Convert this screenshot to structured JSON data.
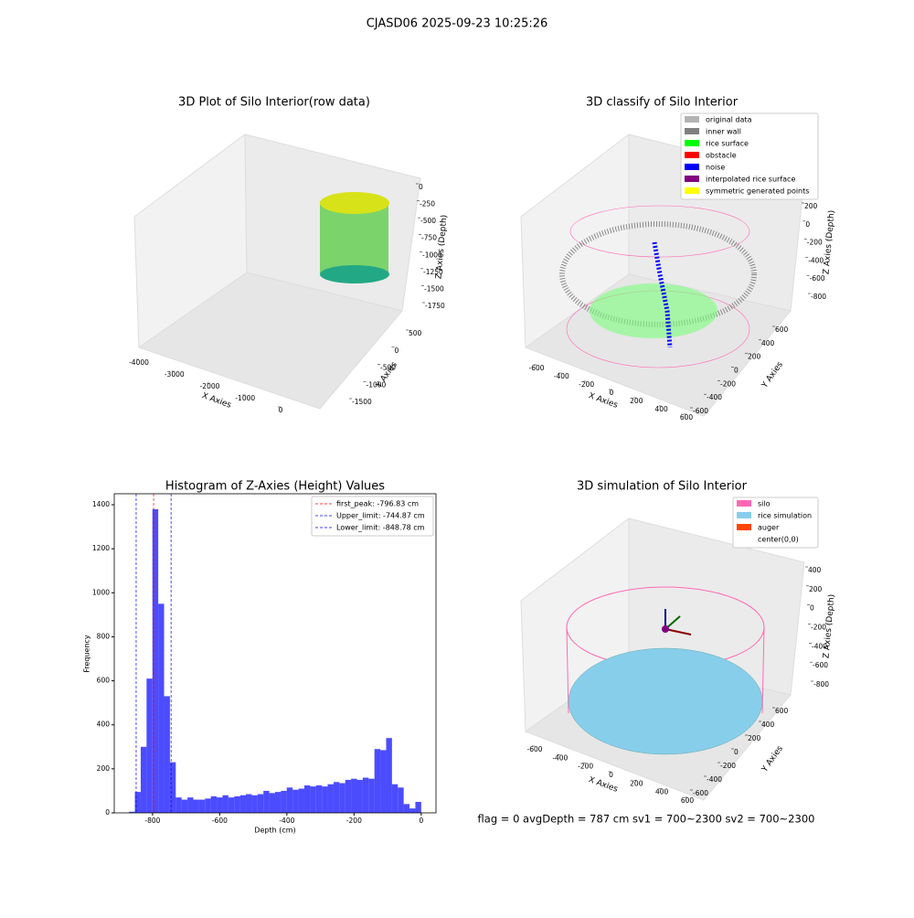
{
  "title": "CJASD06 2025-09-23 10:25:26",
  "footer": "flag = 0     avgDepth = 787 cm  sv1 = 700~2300  sv2 = 700~2300",
  "chart_data": [
    {
      "type": "scatter3d",
      "title": "3D Plot of Silo Interior(row data)",
      "xlabel": "X Axies",
      "ylabel": "Y Axies",
      "zlabel": "Z Axies (Depth)",
      "xticks": [
        -4000,
        -3000,
        -2000,
        -1000,
        0
      ],
      "yticks": [
        500,
        0,
        -500,
        -1000,
        -1500
      ],
      "zticks": [
        0,
        -250,
        -500,
        -750,
        -1000,
        -1250,
        -1500,
        -1750
      ]
    },
    {
      "type": "scatter3d",
      "title": "3D classify of Silo Interior",
      "xlabel": "X Axies",
      "ylabel": "Y Axies",
      "zlabel": "Z Axies (Depth)",
      "xticks": [
        -600,
        -400,
        -200,
        0,
        200,
        400,
        600
      ],
      "yticks": [
        -600,
        -400,
        -200,
        0,
        200,
        400,
        600
      ],
      "zticks": [
        200,
        0,
        -200,
        -400,
        -600,
        -800
      ],
      "legend": [
        {
          "name": "original data",
          "color": "#b3b3b3"
        },
        {
          "name": "inner wall",
          "color": "#808080"
        },
        {
          "name": "rice surface",
          "color": "#00ff00"
        },
        {
          "name": "obstacle",
          "color": "#ff0000"
        },
        {
          "name": "noise",
          "color": "#0000ff"
        },
        {
          "name": "interpolated rice surface",
          "color": "#800080"
        },
        {
          "name": "symmetric generated points",
          "color": "#ffff00"
        }
      ]
    },
    {
      "type": "histogram",
      "title": "Histogram of Z-Axies (Height) Values",
      "xlabel": "Depth (cm)",
      "ylabel": "Frequency",
      "color": "#0000ff",
      "xlim": [
        -914,
        44
      ],
      "ylim": [
        0,
        1450
      ],
      "xticks": [
        -800,
        -600,
        -400,
        -200,
        0
      ],
      "yticks": [
        0,
        200,
        400,
        600,
        800,
        1000,
        1200,
        1400
      ],
      "bins": [
        -870,
        -852.6,
        -835.2,
        -817.8,
        -800.4,
        -783,
        -765.6,
        -748.2,
        -730.8,
        -713.4,
        -696,
        -678.6,
        -661.2,
        -643.8,
        -626.4,
        -609,
        -591.6,
        -574.2,
        -556.8,
        -539.4,
        -522,
        -504.6,
        -487.2,
        -469.8,
        -452.4,
        -435,
        -417.6,
        -400.2,
        -382.8,
        -365.4,
        -348,
        -330.6,
        -313.2,
        -295.8,
        -278.4,
        -261,
        -243.6,
        -226.2,
        -208.8,
        -191.4,
        -174,
        -156.6,
        -139.2,
        -121.8,
        -104.4,
        -87,
        -69.6,
        -52.2,
        -34.8,
        -17.4,
        0
      ],
      "counts": [
        5,
        95,
        300,
        610,
        1380,
        950,
        530,
        230,
        70,
        60,
        70,
        60,
        60,
        65,
        75,
        70,
        80,
        70,
        75,
        80,
        85,
        80,
        85,
        100,
        90,
        95,
        100,
        115,
        105,
        110,
        125,
        120,
        125,
        120,
        130,
        140,
        135,
        150,
        155,
        150,
        160,
        155,
        290,
        285,
        340,
        130,
        115,
        40,
        20,
        50
      ],
      "vlines": [
        {
          "name": "first_peak: -796.83 cm",
          "value": -796.83,
          "color": "#ff0000"
        },
        {
          "name": "Upper_limit: -744.87 cm",
          "value": -744.87,
          "color": "#0000ff"
        },
        {
          "name": "Lower_limit: -848.78 cm",
          "value": -848.78,
          "color": "#0000ff"
        }
      ]
    },
    {
      "type": "scatter3d",
      "title": "3D simulation of Silo Interior",
      "xlabel": "X Axies",
      "ylabel": "Y Axies",
      "zlabel": "Z Axies (Depth)",
      "xticks": [
        -600,
        -400,
        -200,
        0,
        200,
        400,
        600
      ],
      "yticks": [
        -600,
        -400,
        -200,
        0,
        200,
        400,
        600
      ],
      "zticks": [
        400,
        200,
        0,
        -200,
        -400,
        -600,
        -800
      ],
      "legend": [
        {
          "name": "silo",
          "color": "#ff69b4"
        },
        {
          "name": "rice simulation",
          "color": "#87ceeb"
        },
        {
          "name": "auger",
          "color": "#ff4500"
        },
        {
          "name": "center(0,0)",
          "color": "#ffffff"
        }
      ]
    }
  ]
}
